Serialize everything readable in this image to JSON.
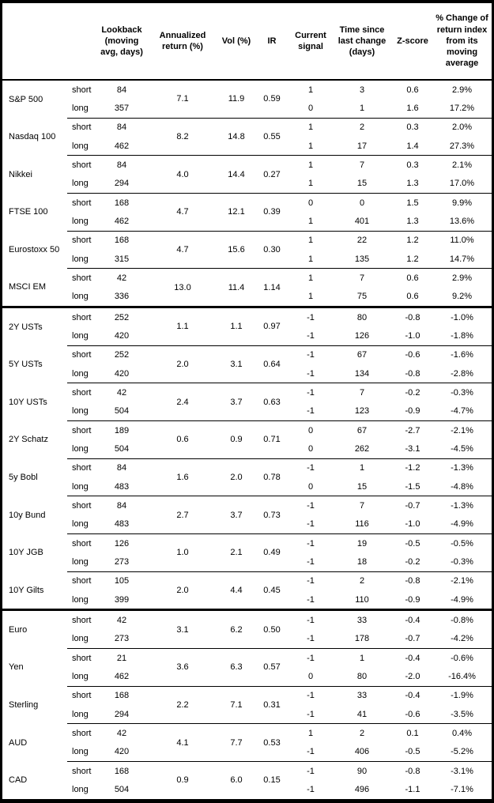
{
  "table": {
    "headers": [
      "Lookback (moving avg, days)",
      "Annualized return (%)",
      "Vol (%)",
      "IR",
      "Current signal",
      "Time since last change (days)",
      "Z-score",
      "% Change of return index from its moving average"
    ],
    "horizon_labels": [
      "short",
      "long"
    ],
    "colors": {
      "text": "#000000",
      "border": "#000000",
      "background": "#ffffff"
    },
    "sections": [
      {
        "name": "equities",
        "assets": [
          {
            "name": "S&P 500",
            "annualized": "7.1",
            "vol": "11.9",
            "ir": "0.59",
            "rows": [
              {
                "horizon": "short",
                "lookback": "84",
                "signal": "1",
                "time": "3",
                "z": "0.6",
                "pct": "2.9%"
              },
              {
                "horizon": "long",
                "lookback": "357",
                "signal": "0",
                "time": "1",
                "z": "1.6",
                "pct": "17.2%"
              }
            ]
          },
          {
            "name": "Nasdaq 100",
            "annualized": "8.2",
            "vol": "14.8",
            "ir": "0.55",
            "rows": [
              {
                "horizon": "short",
                "lookback": "84",
                "signal": "1",
                "time": "2",
                "z": "0.3",
                "pct": "2.0%"
              },
              {
                "horizon": "long",
                "lookback": "462",
                "signal": "1",
                "time": "17",
                "z": "1.4",
                "pct": "27.3%"
              }
            ]
          },
          {
            "name": "Nikkei",
            "annualized": "4.0",
            "vol": "14.4",
            "ir": "0.27",
            "rows": [
              {
                "horizon": "short",
                "lookback": "84",
                "signal": "1",
                "time": "7",
                "z": "0.3",
                "pct": "2.1%"
              },
              {
                "horizon": "long",
                "lookback": "294",
                "signal": "1",
                "time": "15",
                "z": "1.3",
                "pct": "17.0%"
              }
            ]
          },
          {
            "name": "FTSE 100",
            "annualized": "4.7",
            "vol": "12.1",
            "ir": "0.39",
            "rows": [
              {
                "horizon": "short",
                "lookback": "168",
                "signal": "0",
                "time": "0",
                "z": "1.5",
                "pct": "9.9%"
              },
              {
                "horizon": "long",
                "lookback": "462",
                "signal": "1",
                "time": "401",
                "z": "1.3",
                "pct": "13.6%"
              }
            ]
          },
          {
            "name": "Eurostoxx 50",
            "annualized": "4.7",
            "vol": "15.6",
            "ir": "0.30",
            "rows": [
              {
                "horizon": "short",
                "lookback": "168",
                "signal": "1",
                "time": "22",
                "z": "1.2",
                "pct": "11.0%"
              },
              {
                "horizon": "long",
                "lookback": "315",
                "signal": "1",
                "time": "135",
                "z": "1.2",
                "pct": "14.7%"
              }
            ]
          },
          {
            "name": "MSCI EM",
            "annualized": "13.0",
            "vol": "11.4",
            "ir": "1.14",
            "rows": [
              {
                "horizon": "short",
                "lookback": "42",
                "signal": "1",
                "time": "7",
                "z": "0.6",
                "pct": "2.9%"
              },
              {
                "horizon": "long",
                "lookback": "336",
                "signal": "1",
                "time": "75",
                "z": "0.6",
                "pct": "9.2%"
              }
            ]
          }
        ]
      },
      {
        "name": "bonds",
        "assets": [
          {
            "name": "2Y USTs",
            "annualized": "1.1",
            "vol": "1.1",
            "ir": "0.97",
            "rows": [
              {
                "horizon": "short",
                "lookback": "252",
                "signal": "-1",
                "time": "80",
                "z": "-0.8",
                "pct": "-1.0%"
              },
              {
                "horizon": "long",
                "lookback": "420",
                "signal": "-1",
                "time": "126",
                "z": "-1.0",
                "pct": "-1.8%"
              }
            ]
          },
          {
            "name": "5Y USTs",
            "annualized": "2.0",
            "vol": "3.1",
            "ir": "0.64",
            "rows": [
              {
                "horizon": "short",
                "lookback": "252",
                "signal": "-1",
                "time": "67",
                "z": "-0.6",
                "pct": "-1.6%"
              },
              {
                "horizon": "long",
                "lookback": "420",
                "signal": "-1",
                "time": "134",
                "z": "-0.8",
                "pct": "-2.8%"
              }
            ]
          },
          {
            "name": "10Y USTs",
            "annualized": "2.4",
            "vol": "3.7",
            "ir": "0.63",
            "rows": [
              {
                "horizon": "short",
                "lookback": "42",
                "signal": "-1",
                "time": "7",
                "z": "-0.2",
                "pct": "-0.3%"
              },
              {
                "horizon": "long",
                "lookback": "504",
                "signal": "-1",
                "time": "123",
                "z": "-0.9",
                "pct": "-4.7%"
              }
            ]
          },
          {
            "name": "2Y Schatz",
            "annualized": "0.6",
            "vol": "0.9",
            "ir": "0.71",
            "rows": [
              {
                "horizon": "short",
                "lookback": "189",
                "signal": "0",
                "time": "67",
                "z": "-2.7",
                "pct": "-2.1%"
              },
              {
                "horizon": "long",
                "lookback": "504",
                "signal": "0",
                "time": "262",
                "z": "-3.1",
                "pct": "-4.5%"
              }
            ]
          },
          {
            "name": "5y Bobl",
            "annualized": "1.6",
            "vol": "2.0",
            "ir": "0.78",
            "rows": [
              {
                "horizon": "short",
                "lookback": "84",
                "signal": "-1",
                "time": "1",
                "z": "-1.2",
                "pct": "-1.3%"
              },
              {
                "horizon": "long",
                "lookback": "483",
                "signal": "0",
                "time": "15",
                "z": "-1.5",
                "pct": "-4.8%"
              }
            ]
          },
          {
            "name": "10y Bund",
            "annualized": "2.7",
            "vol": "3.7",
            "ir": "0.73",
            "rows": [
              {
                "horizon": "short",
                "lookback": "84",
                "signal": "-1",
                "time": "7",
                "z": "-0.7",
                "pct": "-1.3%"
              },
              {
                "horizon": "long",
                "lookback": "483",
                "signal": "-1",
                "time": "116",
                "z": "-1.0",
                "pct": "-4.9%"
              }
            ]
          },
          {
            "name": "10Y JGB",
            "annualized": "1.0",
            "vol": "2.1",
            "ir": "0.49",
            "rows": [
              {
                "horizon": "short",
                "lookback": "126",
                "signal": "-1",
                "time": "19",
                "z": "-0.5",
                "pct": "-0.5%"
              },
              {
                "horizon": "long",
                "lookback": "273",
                "signal": "-1",
                "time": "18",
                "z": "-0.2",
                "pct": "-0.3%"
              }
            ]
          },
          {
            "name": "10Y Gilts",
            "annualized": "2.0",
            "vol": "4.4",
            "ir": "0.45",
            "rows": [
              {
                "horizon": "short",
                "lookback": "105",
                "signal": "-1",
                "time": "2",
                "z": "-0.8",
                "pct": "-2.1%"
              },
              {
                "horizon": "long",
                "lookback": "399",
                "signal": "-1",
                "time": "110",
                "z": "-0.9",
                "pct": "-4.9%"
              }
            ]
          }
        ]
      },
      {
        "name": "fx",
        "assets": [
          {
            "name": "Euro",
            "annualized": "3.1",
            "vol": "6.2",
            "ir": "0.50",
            "rows": [
              {
                "horizon": "short",
                "lookback": "42",
                "signal": "-1",
                "time": "33",
                "z": "-0.4",
                "pct": "-0.8%"
              },
              {
                "horizon": "long",
                "lookback": "273",
                "signal": "-1",
                "time": "178",
                "z": "-0.7",
                "pct": "-4.2%"
              }
            ]
          },
          {
            "name": "Yen",
            "annualized": "3.6",
            "vol": "6.3",
            "ir": "0.57",
            "rows": [
              {
                "horizon": "short",
                "lookback": "21",
                "signal": "-1",
                "time": "1",
                "z": "-0.4",
                "pct": "-0.6%"
              },
              {
                "horizon": "long",
                "lookback": "462",
                "signal": "0",
                "time": "80",
                "z": "-2.0",
                "pct": "-16.4%"
              }
            ]
          },
          {
            "name": "Sterling",
            "annualized": "2.2",
            "vol": "7.1",
            "ir": "0.31",
            "rows": [
              {
                "horizon": "short",
                "lookback": "168",
                "signal": "-1",
                "time": "33",
                "z": "-0.4",
                "pct": "-1.9%"
              },
              {
                "horizon": "long",
                "lookback": "294",
                "signal": "-1",
                "time": "41",
                "z": "-0.6",
                "pct": "-3.5%"
              }
            ]
          },
          {
            "name": "AUD",
            "annualized": "4.1",
            "vol": "7.7",
            "ir": "0.53",
            "rows": [
              {
                "horizon": "short",
                "lookback": "42",
                "signal": "1",
                "time": "2",
                "z": "0.1",
                "pct": "0.4%"
              },
              {
                "horizon": "long",
                "lookback": "420",
                "signal": "-1",
                "time": "406",
                "z": "-0.5",
                "pct": "-5.2%"
              }
            ]
          },
          {
            "name": "CAD",
            "annualized": "0.9",
            "vol": "6.0",
            "ir": "0.15",
            "rows": [
              {
                "horizon": "short",
                "lookback": "168",
                "signal": "-1",
                "time": "90",
                "z": "-0.8",
                "pct": "-3.1%"
              },
              {
                "horizon": "long",
                "lookback": "504",
                "signal": "-1",
                "time": "496",
                "z": "-1.1",
                "pct": "-7.1%"
              }
            ]
          }
        ]
      }
    ]
  }
}
